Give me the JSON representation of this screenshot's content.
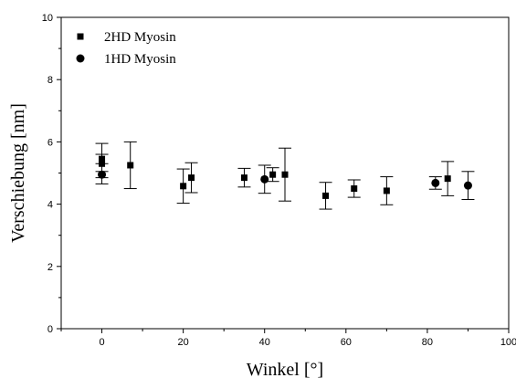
{
  "chart_data": {
    "type": "scatter",
    "xlabel": "Winkel [°]",
    "ylabel": "Verschiebung [nm]",
    "xlim": [
      -10,
      100
    ],
    "ylim": [
      0,
      10
    ],
    "xticks": [
      0,
      20,
      40,
      60,
      80,
      100
    ],
    "yticks": [
      0,
      2,
      4,
      6,
      8,
      10
    ],
    "legend_position": "top-left",
    "grid": false,
    "series": [
      {
        "name": "2HD Myosin",
        "marker": "square",
        "points": [
          {
            "x": 0,
            "y": 5.3,
            "err": 0.65
          },
          {
            "x": 0,
            "y": 5.45,
            "err": 0.15
          },
          {
            "x": 7,
            "y": 5.25,
            "err": 0.75
          },
          {
            "x": 20,
            "y": 4.58,
            "err": 0.55
          },
          {
            "x": 22,
            "y": 4.85,
            "err": 0.48
          },
          {
            "x": 35,
            "y": 4.85,
            "err": 0.3
          },
          {
            "x": 42,
            "y": 4.95,
            "err": 0.22
          },
          {
            "x": 45,
            "y": 4.95,
            "err": 0.85
          },
          {
            "x": 55,
            "y": 4.27,
            "err": 0.43
          },
          {
            "x": 62,
            "y": 4.5,
            "err": 0.28
          },
          {
            "x": 70,
            "y": 4.43,
            "err": 0.45
          },
          {
            "x": 85,
            "y": 4.82,
            "err": 0.55
          }
        ]
      },
      {
        "name": "1HD Myosin",
        "marker": "circle",
        "points": [
          {
            "x": 0,
            "y": 4.95,
            "err": 0.1
          },
          {
            "x": 40,
            "y": 4.8,
            "err": 0.45
          },
          {
            "x": 82,
            "y": 4.68,
            "err": 0.2
          },
          {
            "x": 90,
            "y": 4.6,
            "err": 0.45
          }
        ]
      }
    ]
  }
}
